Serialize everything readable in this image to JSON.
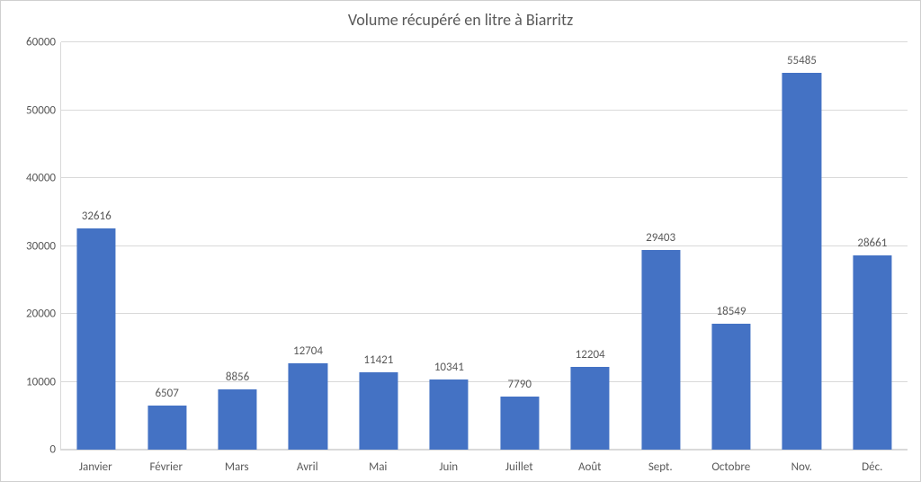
{
  "chart": {
    "type": "bar",
    "title": "Volume récupéré en litre à Biarritz",
    "title_fontsize": 18,
    "title_color": "#595959",
    "categories": [
      "Janvier",
      "Février",
      "Mars",
      "Avril",
      "Mai",
      "Juin",
      "Juillet",
      "Août",
      "Sept.",
      "Octobre",
      "Nov.",
      "Déc."
    ],
    "values": [
      32616,
      6507,
      8856,
      12704,
      11421,
      10341,
      7790,
      12204,
      29403,
      18549,
      55485,
      28661
    ],
    "bar_color": "#4472c4",
    "background_color": "#ffffff",
    "border_color": "#d0d0d0",
    "grid_color": "#d9d9d9",
    "label_color": "#595959",
    "label_fontsize": 13,
    "ylim": [
      0,
      60000
    ],
    "ytick_step": 10000,
    "bar_width_ratio": 0.55
  }
}
